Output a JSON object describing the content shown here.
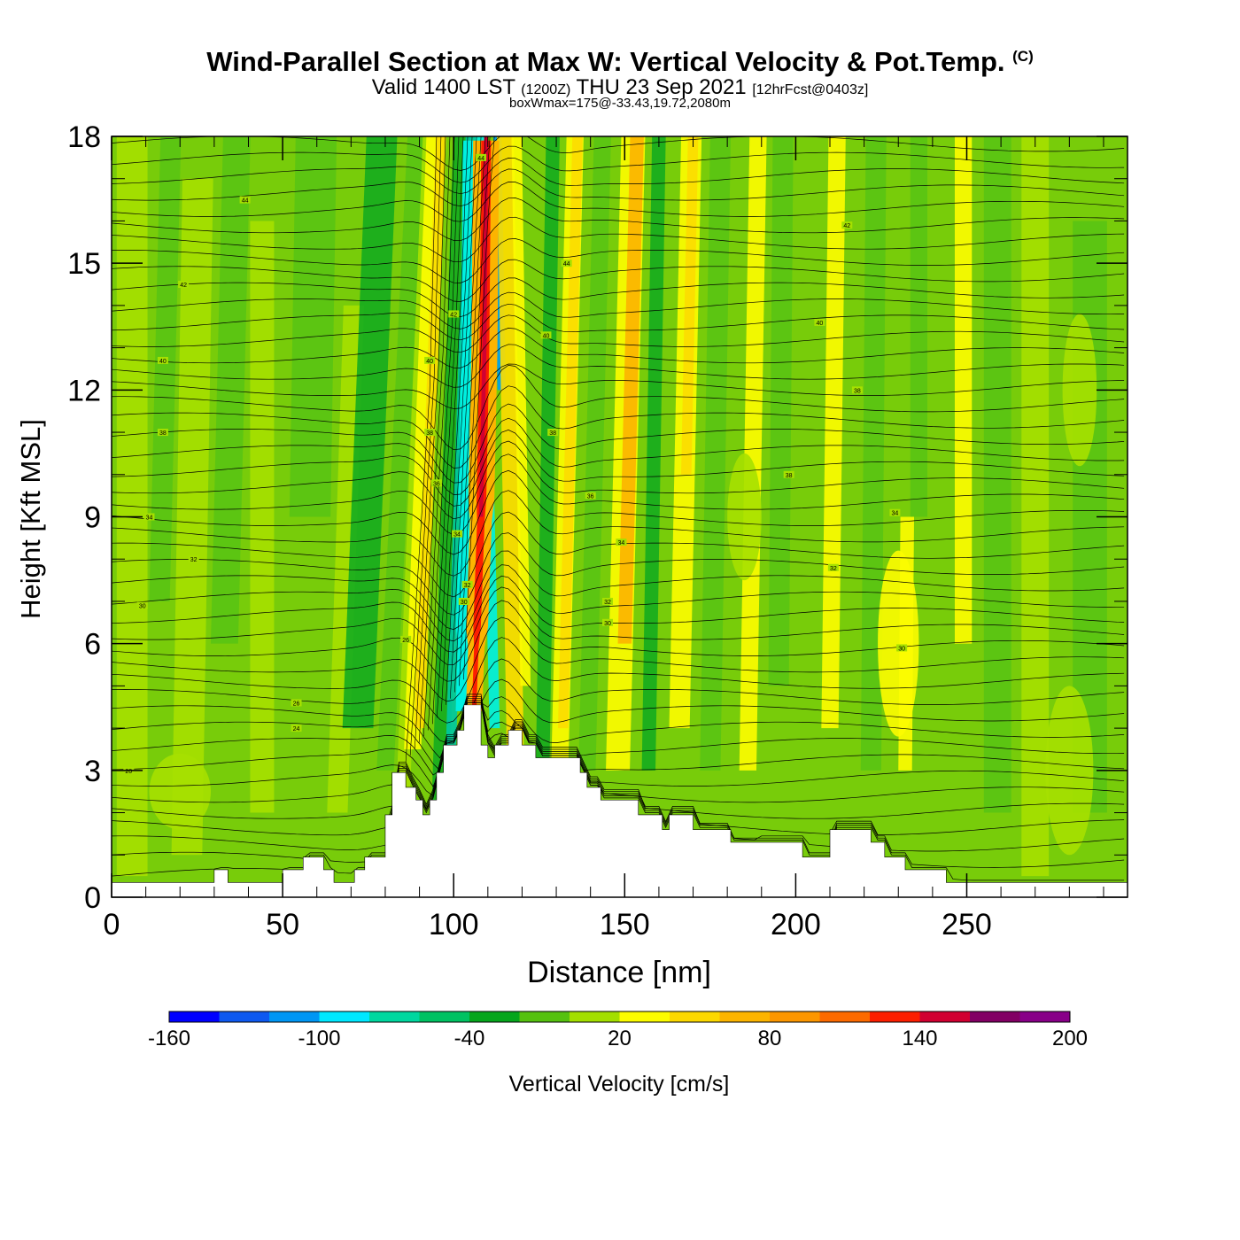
{
  "header": {
    "title_main": "Wind-Parallel Section at Max W: Vertical Velocity & Pot.Temp.",
    "title_copyright": "(C)",
    "valid_prefix": "Valid 1400 LST",
    "valid_utc": "(1200Z)",
    "valid_date": "THU 23 Sep 2021",
    "forecast": "[12hrFcst@0403z]",
    "box_wmax": "boxWmax=175@-33.43,19.72,2080m"
  },
  "chart_data": {
    "type": "contour-section",
    "xlabel": "Distance [nm]",
    "ylabel": "Height [Kft MSL]",
    "xlim": [
      0,
      297
    ],
    "ylim": [
      0,
      18
    ],
    "x_ticks": [
      0,
      50,
      100,
      150,
      200,
      250
    ],
    "y_ticks": [
      0,
      3,
      6,
      9,
      12,
      15,
      18
    ],
    "terrain_kft": [
      [
        0,
        0.35
      ],
      [
        30,
        0.35
      ],
      [
        30,
        0.65
      ],
      [
        34,
        0.65
      ],
      [
        34,
        0.35
      ],
      [
        50,
        0.35
      ],
      [
        50,
        0.65
      ],
      [
        56,
        0.65
      ],
      [
        56,
        0.95
      ],
      [
        62,
        0.95
      ],
      [
        62,
        0.65
      ],
      [
        65,
        0.65
      ],
      [
        65,
        0.35
      ],
      [
        71,
        0.35
      ],
      [
        71,
        0.65
      ],
      [
        74,
        0.65
      ],
      [
        74,
        0.95
      ],
      [
        80,
        0.95
      ],
      [
        80,
        1.95
      ],
      [
        82,
        1.95
      ],
      [
        82,
        2.95
      ],
      [
        86,
        2.95
      ],
      [
        86,
        2.6
      ],
      [
        89,
        2.6
      ],
      [
        89,
        2.3
      ],
      [
        91,
        2.3
      ],
      [
        91,
        1.95
      ],
      [
        93,
        1.95
      ],
      [
        93,
        2.3
      ],
      [
        95,
        2.3
      ],
      [
        95,
        2.95
      ],
      [
        97,
        2.95
      ],
      [
        97,
        3.6
      ],
      [
        101,
        3.6
      ],
      [
        101,
        3.95
      ],
      [
        103,
        3.95
      ],
      [
        103,
        4.55
      ],
      [
        108,
        4.55
      ],
      [
        108,
        3.6
      ],
      [
        110,
        3.6
      ],
      [
        110,
        3.3
      ],
      [
        112,
        3.3
      ],
      [
        112,
        3.6
      ],
      [
        116,
        3.6
      ],
      [
        116,
        3.95
      ],
      [
        120,
        3.95
      ],
      [
        120,
        3.6
      ],
      [
        124,
        3.6
      ],
      [
        124,
        3.3
      ],
      [
        137,
        3.3
      ],
      [
        137,
        2.95
      ],
      [
        139,
        2.95
      ],
      [
        139,
        2.6
      ],
      [
        143,
        2.6
      ],
      [
        143,
        2.3
      ],
      [
        154,
        2.3
      ],
      [
        154,
        1.95
      ],
      [
        161,
        1.95
      ],
      [
        161,
        1.6
      ],
      [
        163,
        1.6
      ],
      [
        163,
        1.95
      ],
      [
        170,
        1.95
      ],
      [
        170,
        1.6
      ],
      [
        181,
        1.6
      ],
      [
        181,
        1.3
      ],
      [
        202,
        1.3
      ],
      [
        202,
        0.95
      ],
      [
        210,
        0.95
      ],
      [
        210,
        1.6
      ],
      [
        222,
        1.6
      ],
      [
        222,
        1.3
      ],
      [
        226,
        1.3
      ],
      [
        226,
        0.95
      ],
      [
        232,
        0.95
      ],
      [
        232,
        0.65
      ],
      [
        244,
        0.65
      ],
      [
        244,
        0.35
      ],
      [
        297,
        0.35
      ]
    ],
    "updraft_axis": [
      [
        106,
        4.5
      ],
      [
        108,
        9
      ],
      [
        109,
        13
      ],
      [
        109.5,
        18
      ]
    ],
    "theta_contour_labels": [
      {
        "x": 39,
        "y": 16.5,
        "label": "44"
      },
      {
        "x": 21,
        "y": 14.5,
        "label": "42"
      },
      {
        "x": 15,
        "y": 12.7,
        "label": "40"
      },
      {
        "x": 15,
        "y": 11,
        "label": "38"
      },
      {
        "x": 11,
        "y": 9,
        "label": "34"
      },
      {
        "x": 24,
        "y": 8,
        "label": "32"
      },
      {
        "x": 9,
        "y": 6.9,
        "label": "30"
      },
      {
        "x": 5,
        "y": 3,
        "label": "20"
      },
      {
        "x": 54,
        "y": 4.6,
        "label": "26"
      },
      {
        "x": 54,
        "y": 4,
        "label": "24"
      },
      {
        "x": 86,
        "y": 6.1,
        "label": "26"
      },
      {
        "x": 93,
        "y": 12.7,
        "label": "40"
      },
      {
        "x": 93,
        "y": 11,
        "label": "38"
      },
      {
        "x": 95,
        "y": 9.8,
        "label": "36"
      },
      {
        "x": 100,
        "y": 13.8,
        "label": "42"
      },
      {
        "x": 101,
        "y": 8.6,
        "label": "34"
      },
      {
        "x": 104,
        "y": 7.4,
        "label": "32"
      },
      {
        "x": 103,
        "y": 7,
        "label": "30"
      },
      {
        "x": 108,
        "y": 17.5,
        "label": "44"
      },
      {
        "x": 133,
        "y": 15,
        "label": "44"
      },
      {
        "x": 127,
        "y": 13.3,
        "label": "40"
      },
      {
        "x": 129,
        "y": 11,
        "label": "38"
      },
      {
        "x": 140,
        "y": 9.5,
        "label": "36"
      },
      {
        "x": 149,
        "y": 8.4,
        "label": "34"
      },
      {
        "x": 145,
        "y": 7,
        "label": "32"
      },
      {
        "x": 145,
        "y": 6.5,
        "label": "30"
      },
      {
        "x": 215,
        "y": 15.9,
        "label": "42"
      },
      {
        "x": 207,
        "y": 13.6,
        "label": "40"
      },
      {
        "x": 218,
        "y": 12,
        "label": "38"
      },
      {
        "x": 198,
        "y": 10,
        "label": "38"
      },
      {
        "x": 229,
        "y": 9.1,
        "label": "34"
      },
      {
        "x": 211,
        "y": 7.8,
        "label": "32"
      },
      {
        "x": 231,
        "y": 5.9,
        "label": "30"
      }
    ],
    "colorbar": {
      "label": "Vertical Velocity [cm/s]",
      "tick_labels": [
        "-160",
        "-100",
        "-40",
        "20",
        "80",
        "140",
        "200"
      ],
      "bins": [
        -160,
        -140,
        -120,
        -100,
        -80,
        -60,
        -40,
        -20,
        0,
        20,
        40,
        60,
        80,
        100,
        120,
        140,
        160,
        180,
        200
      ],
      "colors": [
        "#0000ff",
        "#0e59f0",
        "#0096f4",
        "#00e8ff",
        "#00d79f",
        "#00c262",
        "#05a61c",
        "#55c10f",
        "#a3df00",
        "#fcfc00",
        "#fcd800",
        "#fcb400",
        "#fc9600",
        "#fc6a00",
        "#fc1e00",
        "#d10031",
        "#820064",
        "#880088"
      ]
    },
    "field_colors": {
      "background": "#78cc0a",
      "light": "#a6e000",
      "green": "#5ac414",
      "darkgreen": "#17ad1e",
      "yellow": "#fcfc00",
      "gold": "#fcdc00",
      "orange": "#fcb400",
      "red": "#fc1e00",
      "darkred": "#d10031",
      "cyan": "#00f0e0",
      "blue": "#00a0f0",
      "teal": "#00c8a0",
      "terrain": "#ffffff"
    }
  }
}
